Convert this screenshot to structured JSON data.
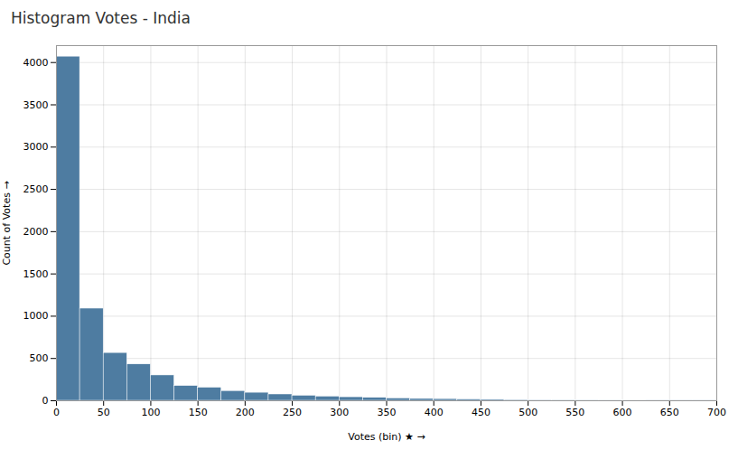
{
  "chart_data": {
    "type": "histogram",
    "title": "Histogram Votes - India",
    "xlabel": "Votes (bin) ★",
    "ylabel": "Count of Votes",
    "color": "#4e7ca1",
    "bins": [
      0,
      25,
      50,
      75,
      100,
      125,
      150,
      175,
      200,
      225,
      250,
      275,
      300,
      325,
      350,
      375,
      400,
      425,
      450,
      475,
      500,
      525,
      550,
      575,
      600,
      625,
      650,
      675,
      700
    ],
    "values": [
      4070,
      1090,
      565,
      430,
      300,
      175,
      155,
      115,
      95,
      75,
      60,
      50,
      42,
      35,
      28,
      22,
      20,
      15,
      12,
      9,
      7,
      6,
      5,
      4,
      3,
      2,
      2,
      2
    ],
    "xlim": [
      0,
      700
    ],
    "xticks": [
      0,
      50,
      100,
      150,
      200,
      250,
      300,
      350,
      400,
      450,
      500,
      550,
      600,
      650,
      700
    ],
    "ylim": [
      0,
      4200
    ],
    "yticks": [
      0,
      500,
      1000,
      1500,
      2000,
      2500,
      3000,
      3500,
      4000
    ],
    "grid": true
  }
}
